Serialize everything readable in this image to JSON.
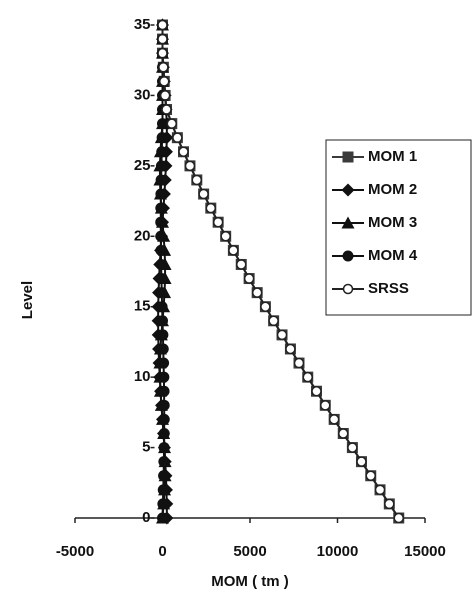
{
  "chart_data": {
    "type": "line",
    "x_label": "MOM ( tm )",
    "y_label": "Level",
    "y": [
      0,
      1,
      2,
      3,
      4,
      5,
      6,
      7,
      8,
      9,
      10,
      11,
      12,
      13,
      14,
      15,
      16,
      17,
      18,
      19,
      20,
      21,
      22,
      23,
      24,
      25,
      26,
      27,
      28,
      29,
      30,
      31,
      32,
      33,
      34,
      35
    ],
    "series": [
      {
        "name": "MOM 1",
        "color": "#3a3a3a",
        "marker": "square",
        "x": [
          13500,
          12960,
          12430,
          11900,
          11370,
          10850,
          10330,
          9810,
          9300,
          8800,
          8300,
          7800,
          7310,
          6830,
          6350,
          5880,
          5410,
          4950,
          4500,
          4050,
          3610,
          3180,
          2760,
          2350,
          1960,
          1570,
          1200,
          850,
          530,
          230,
          150,
          100,
          50,
          0,
          0,
          0
        ]
      },
      {
        "name": "MOM 2",
        "color": "#111111",
        "marker": "diamond",
        "x": [
          250,
          244,
          225,
          196,
          156,
          109,
          56,
          0,
          -56,
          -109,
          -156,
          -196,
          -225,
          -244,
          -250,
          -244,
          -225,
          -196,
          -156,
          -109,
          -56,
          0,
          56,
          109,
          156,
          196,
          225,
          244,
          250,
          200,
          150,
          100,
          50,
          0,
          0,
          0
        ]
      },
      {
        "name": "MOM 3",
        "color": "#111111",
        "marker": "triangle",
        "x": [
          0,
          65,
          117,
          146,
          146,
          117,
          65,
          0,
          -65,
          -117,
          -146,
          -146,
          -117,
          -65,
          0,
          65,
          117,
          146,
          146,
          117,
          65,
          0,
          -65,
          -117,
          -146,
          -146,
          -117,
          -65,
          0,
          0,
          0,
          0,
          0,
          0,
          0,
          0
        ]
      },
      {
        "name": "MOM 4",
        "color": "#111111",
        "marker": "circle",
        "x": [
          0,
          22,
          43,
          62,
          78,
          90,
          97,
          100,
          97,
          90,
          78,
          62,
          43,
          22,
          0,
          -22,
          -43,
          -62,
          -78,
          -90,
          -97,
          -100,
          -97,
          -90,
          -78,
          -62,
          -43,
          -22,
          0,
          0,
          0,
          0,
          0,
          0,
          0,
          0
        ]
      },
      {
        "name": "SRSS",
        "color": "#222222",
        "marker": "open-circle",
        "x": [
          13500,
          12960,
          12430,
          11900,
          11370,
          10850,
          10330,
          9810,
          9300,
          8800,
          8300,
          7800,
          7310,
          6830,
          6350,
          5880,
          5410,
          4950,
          4500,
          4050,
          3610,
          3180,
          2760,
          2350,
          1960,
          1570,
          1200,
          850,
          530,
          230,
          150,
          100,
          50,
          0,
          0,
          0
        ]
      }
    ],
    "xlim": [
      -5000,
      15000
    ],
    "xticks": [
      -5000,
      0,
      5000,
      10000,
      15000
    ],
    "ylim": [
      0,
      35
    ],
    "yticks": [
      0,
      5,
      10,
      15,
      20,
      25,
      30,
      35
    ],
    "legend": "right"
  }
}
